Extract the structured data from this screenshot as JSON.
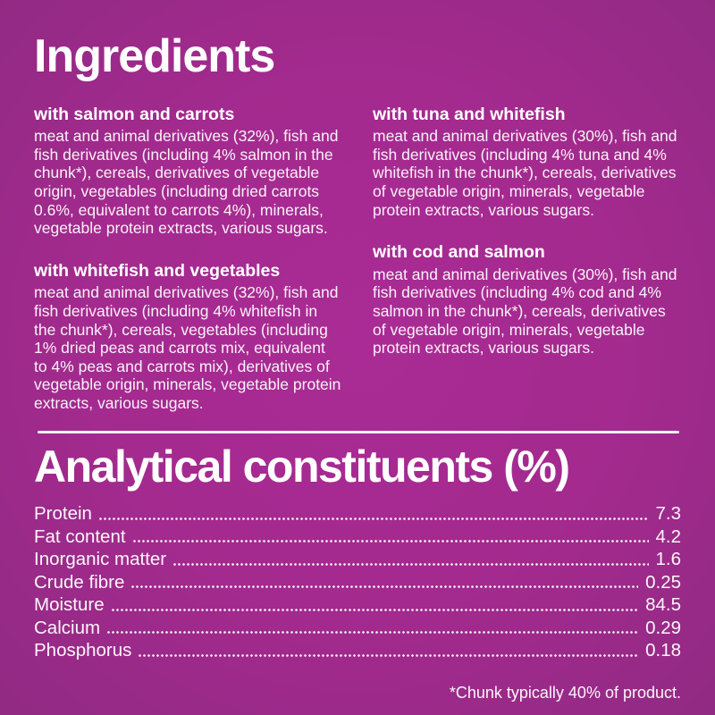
{
  "page": {
    "background_center_color": "#aa2b95",
    "background_edge_color": "#8c2a80",
    "text_color": "#ffffff",
    "divider_color": "#fdf4fb"
  },
  "ingredients": {
    "title": "Ingredients",
    "columns": [
      {
        "blocks": [
          {
            "heading": "with salmon and carrots",
            "body": "meat and animal derivatives (32%), fish and fish derivatives (including 4% salmon in the chunk*), cereals, derivatives of vegetable origin, vegetables (including dried carrots 0.6%, equivalent to carrots 4%), minerals, vegetable protein extracts, various sugars."
          },
          {
            "heading": "with whitefish and vegetables",
            "body": "meat and animal derivatives (32%), fish and fish derivatives (including 4% whitefish in the chunk*), cereals, vegetables (including 1% dried peas and carrots mix, equivalent to 4% peas and carrots mix), derivatives of vegetable origin, minerals, vegetable protein extracts, various sugars."
          }
        ]
      },
      {
        "blocks": [
          {
            "heading": "with tuna and whitefish",
            "body": "meat and animal derivatives (30%), fish and fish derivatives (including 4% tuna and 4% whitefish in the chunk*), cereals, derivatives of vegetable origin, minerals, vegetable protein extracts, various sugars."
          },
          {
            "heading": "with cod and salmon",
            "body": "meat and animal derivatives (30%), fish and fish derivatives (including 4% cod and 4% salmon in the chunk*), cereals, derivatives of vegetable origin, minerals, vegetable protein extracts, various sugars."
          }
        ]
      }
    ]
  },
  "analytical": {
    "title": "Analytical constituents (%)",
    "rows": [
      {
        "label": "Protein",
        "value": "7.3"
      },
      {
        "label": "Fat content",
        "value": "4.2"
      },
      {
        "label": "Inorganic matter",
        "value": "1.6"
      },
      {
        "label": "Crude fibre",
        "value": "0.25"
      },
      {
        "label": "Moisture",
        "value": "84.5"
      },
      {
        "label": "Calcium",
        "value": "0.29"
      },
      {
        "label": "Phosphorus",
        "value": "0.18"
      }
    ]
  },
  "footnote": "*Chunk typically 40% of product."
}
